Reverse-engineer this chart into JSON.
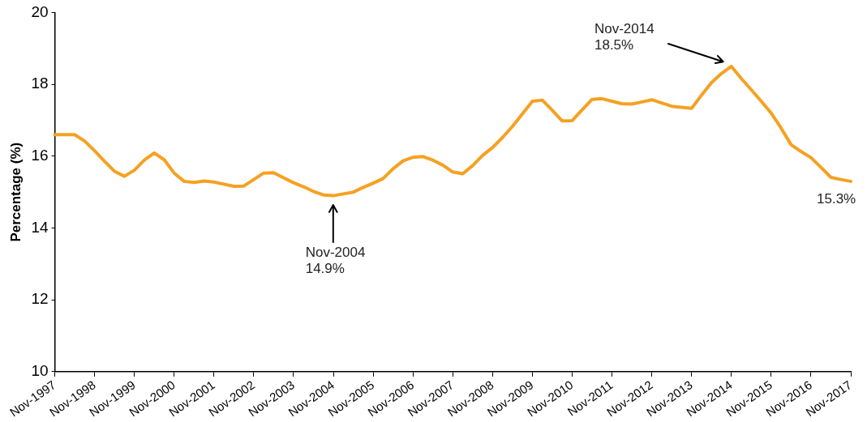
{
  "chart_data": {
    "type": "line",
    "ylabel": "Percentage (%)",
    "categories": [
      "Nov-1997",
      null,
      null,
      null,
      "Nov-1998",
      null,
      null,
      null,
      "Nov-1999",
      null,
      null,
      null,
      "Nov-2000",
      null,
      null,
      null,
      "Nov-2001",
      null,
      null,
      null,
      "Nov-2002",
      null,
      null,
      null,
      "Nov-2003",
      null,
      null,
      null,
      "Nov-2004",
      null,
      null,
      null,
      "Nov-2005",
      null,
      null,
      null,
      "Nov-2006",
      null,
      null,
      null,
      "Nov-2007",
      null,
      null,
      null,
      "Nov-2008",
      null,
      null,
      null,
      "Nov-2009",
      null,
      null,
      null,
      "Nov-2010",
      null,
      null,
      null,
      "Nov-2011",
      null,
      null,
      null,
      "Nov-2012",
      null,
      null,
      null,
      "Nov-2013",
      null,
      null,
      null,
      "Nov-2014",
      null,
      null,
      null,
      "Nov-2015",
      null,
      null,
      null,
      "Nov-2016",
      null,
      null,
      null,
      "Nov-2017"
    ],
    "series": [
      {
        "color": "#f5a122",
        "values": [
          16.6,
          16.6,
          16.6,
          16.42,
          16.15,
          15.86,
          15.58,
          15.44,
          15.61,
          15.89,
          16.09,
          15.9,
          15.53,
          15.3,
          15.27,
          15.31,
          15.28,
          15.22,
          15.16,
          15.17,
          15.35,
          15.53,
          15.54,
          15.4,
          15.26,
          15.15,
          15.02,
          14.92,
          14.9,
          14.95,
          15.0,
          15.13,
          15.25,
          15.38,
          15.65,
          15.87,
          15.97,
          15.99,
          15.89,
          15.75,
          15.56,
          15.51,
          15.74,
          16.02,
          16.24,
          16.52,
          16.83,
          17.18,
          17.53,
          17.56,
          17.28,
          16.98,
          16.99,
          17.29,
          17.58,
          17.6,
          17.53,
          17.46,
          17.45,
          17.51,
          17.57,
          17.48,
          17.39,
          17.36,
          17.33,
          17.7,
          18.05,
          18.3,
          18.5,
          18.16,
          17.85,
          17.53,
          17.2,
          16.78,
          16.32,
          16.13,
          15.96,
          15.69,
          15.41,
          15.35,
          15.3
        ]
      }
    ],
    "ylim": [
      10,
      20
    ],
    "yticks": [
      10,
      12,
      14,
      16,
      18,
      20
    ],
    "annotations": [
      "Nov-2004\n14.9%",
      "Nov-2014\n18.5%",
      {
        "text": "15.3%",
        "x": "Nov-2017",
        "y": 15.3
      }
    ],
    "grid": false,
    "legend": false,
    "marker": "none",
    "line_style": "solid"
  }
}
